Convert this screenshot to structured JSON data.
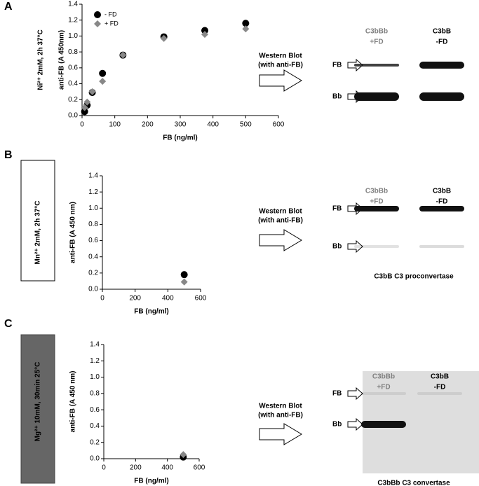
{
  "panels": [
    "A",
    "B",
    "C"
  ],
  "chart_data": [
    {
      "type": "scatter",
      "condition": "Ni²⁺ 2mM, 2h 37°C",
      "x_label": "FB (ng/ml)",
      "y_label": "anti-FB (A 450nm)",
      "x": [
        7.8,
        15.6,
        31.25,
        62.5,
        125,
        250,
        375,
        500
      ],
      "series": [
        {
          "name": "- FD",
          "color": "#000000",
          "marker": "circle",
          "values": [
            0.05,
            0.13,
            0.29,
            0.53,
            0.76,
            0.99,
            1.07,
            1.16
          ]
        },
        {
          "name": "+ FD",
          "color": "#888888",
          "marker": "diamond",
          "values": [
            0.1,
            0.17,
            0.3,
            0.43,
            0.76,
            0.97,
            1.02,
            1.09
          ]
        }
      ],
      "xlim": [
        0,
        600
      ],
      "xticks": [
        0,
        100,
        200,
        300,
        400,
        500,
        600
      ],
      "ylim": [
        0,
        1.4
      ],
      "yticks": [
        {
          "value": 0,
          "label": "0.0"
        },
        0.2,
        0.4,
        0.6,
        0.8,
        {
          "value": 1,
          "label": "1.0"
        },
        1.2,
        1.4
      ],
      "legend": "upper left"
    },
    {
      "type": "scatter",
      "condition": "Mn²⁺ 2mM, 2h 37°C",
      "x_label": "FB (ng/ml)",
      "y_label": "anti-FB (A 450 nm)",
      "x": [
        500
      ],
      "series": [
        {
          "color": "#000000",
          "marker": "circle",
          "values": [
            0.18
          ]
        },
        {
          "color": "#888888",
          "marker": "diamond",
          "values": [
            0.09
          ]
        }
      ],
      "xlim": [
        0,
        600
      ],
      "xticks": [
        0,
        200,
        400,
        600
      ],
      "ylim": [
        0,
        1.4
      ],
      "yticks": [
        {
          "value": 0,
          "label": "0.0"
        },
        0.2,
        0.4,
        0.6,
        0.8,
        {
          "value": 1,
          "label": "1.0"
        },
        1.2,
        1.4
      ]
    },
    {
      "type": "scatter",
      "condition": "Mg²⁺ 10mM, 30min 25°C",
      "x_label": "FB (ng/ml)",
      "y_label": "anti-FB (A 450 nm)",
      "x": [
        500
      ],
      "series": [
        {
          "color": "#000000",
          "marker": "circle",
          "values": [
            0.02
          ]
        },
        {
          "color": "#888888",
          "marker": "diamond",
          "values": [
            0.05
          ]
        }
      ],
      "xlim": [
        0,
        600
      ],
      "xticks": [
        0,
        200,
        400,
        600
      ],
      "ylim": [
        0,
        1.4
      ],
      "yticks": [
        {
          "value": 0,
          "label": "0.0"
        },
        0.2,
        0.4,
        0.6,
        0.8,
        {
          "value": 1,
          "label": "1.0"
        },
        1.2,
        1.4
      ]
    }
  ],
  "western_blots": [
    {
      "title": [
        "Western Blot",
        "(with anti-FB)"
      ],
      "lanes": [
        [
          "C3bBb",
          "+FD"
        ],
        [
          "C3bB",
          "-FD"
        ]
      ],
      "rows": [
        "FB",
        "Bb"
      ]
    },
    {
      "title": [
        "Western Blot",
        "(with anti-FB)"
      ],
      "lanes": [
        [
          "C3bBb",
          "+FD"
        ],
        [
          "C3bB",
          "-FD"
        ]
      ],
      "rows": [
        "FB",
        "Bb"
      ],
      "caption": "C3bB C3 proconvertase"
    },
    {
      "title": [
        "Western Blot",
        "(with anti-FB)"
      ],
      "lanes": [
        [
          "C3bBb",
          "+FD"
        ],
        [
          "C3bB",
          "-FD"
        ]
      ],
      "rows": [
        "FB",
        "Bb"
      ],
      "caption": "C3bBb C3 convertase"
    }
  ]
}
